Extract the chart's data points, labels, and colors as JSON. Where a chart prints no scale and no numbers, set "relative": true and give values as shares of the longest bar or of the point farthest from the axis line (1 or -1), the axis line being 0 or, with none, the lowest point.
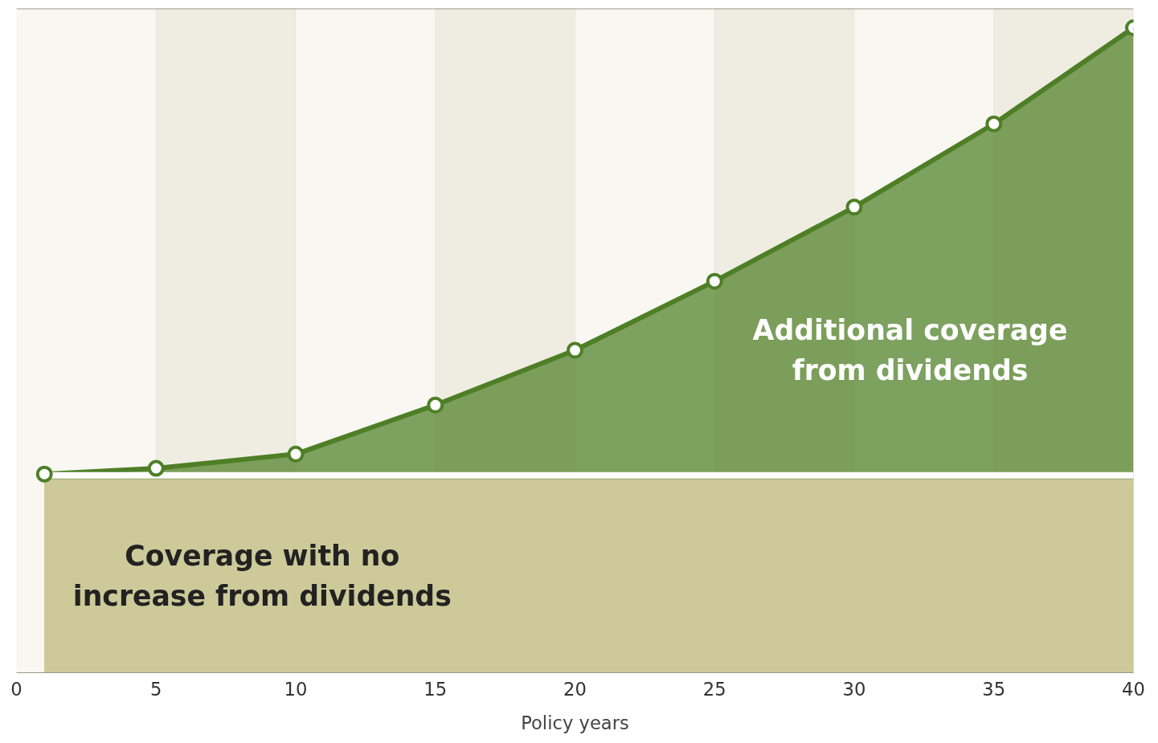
{
  "chart_data": {
    "type": "area",
    "relative": true,
    "xlabel": "Policy years",
    "xlim": [
      0,
      40
    ],
    "xticks": [
      0,
      5,
      10,
      15,
      20,
      25,
      30,
      35,
      40
    ],
    "series": [
      {
        "color": "#cdc999",
        "x": [
          1,
          40
        ],
        "values": [
          0.3,
          0.3
        ]
      },
      {
        "color": "#4e7f26",
        "x": [
          1,
          5,
          10,
          15,
          20,
          25,
          30,
          35,
          40
        ],
        "values": [
          0.308,
          0.317,
          0.339,
          0.415,
          0.5,
          0.607,
          0.722,
          0.851,
          1
        ],
        "marker": "circle"
      }
    ],
    "bands": [
      {
        "axis": "x",
        "from": 5,
        "to": 10,
        "color": "#efede2"
      },
      {
        "axis": "x",
        "from": 15,
        "to": 20,
        "color": "#efede2"
      },
      {
        "axis": "x",
        "from": 25,
        "to": 30,
        "color": "#efede2"
      },
      {
        "axis": "x",
        "from": 35,
        "to": 40,
        "color": "#efede2"
      }
    ],
    "annotations": [
      "Coverage with no\nincrease from dividends",
      "Additional coverage\nfrom dividends"
    ],
    "grid": false
  }
}
